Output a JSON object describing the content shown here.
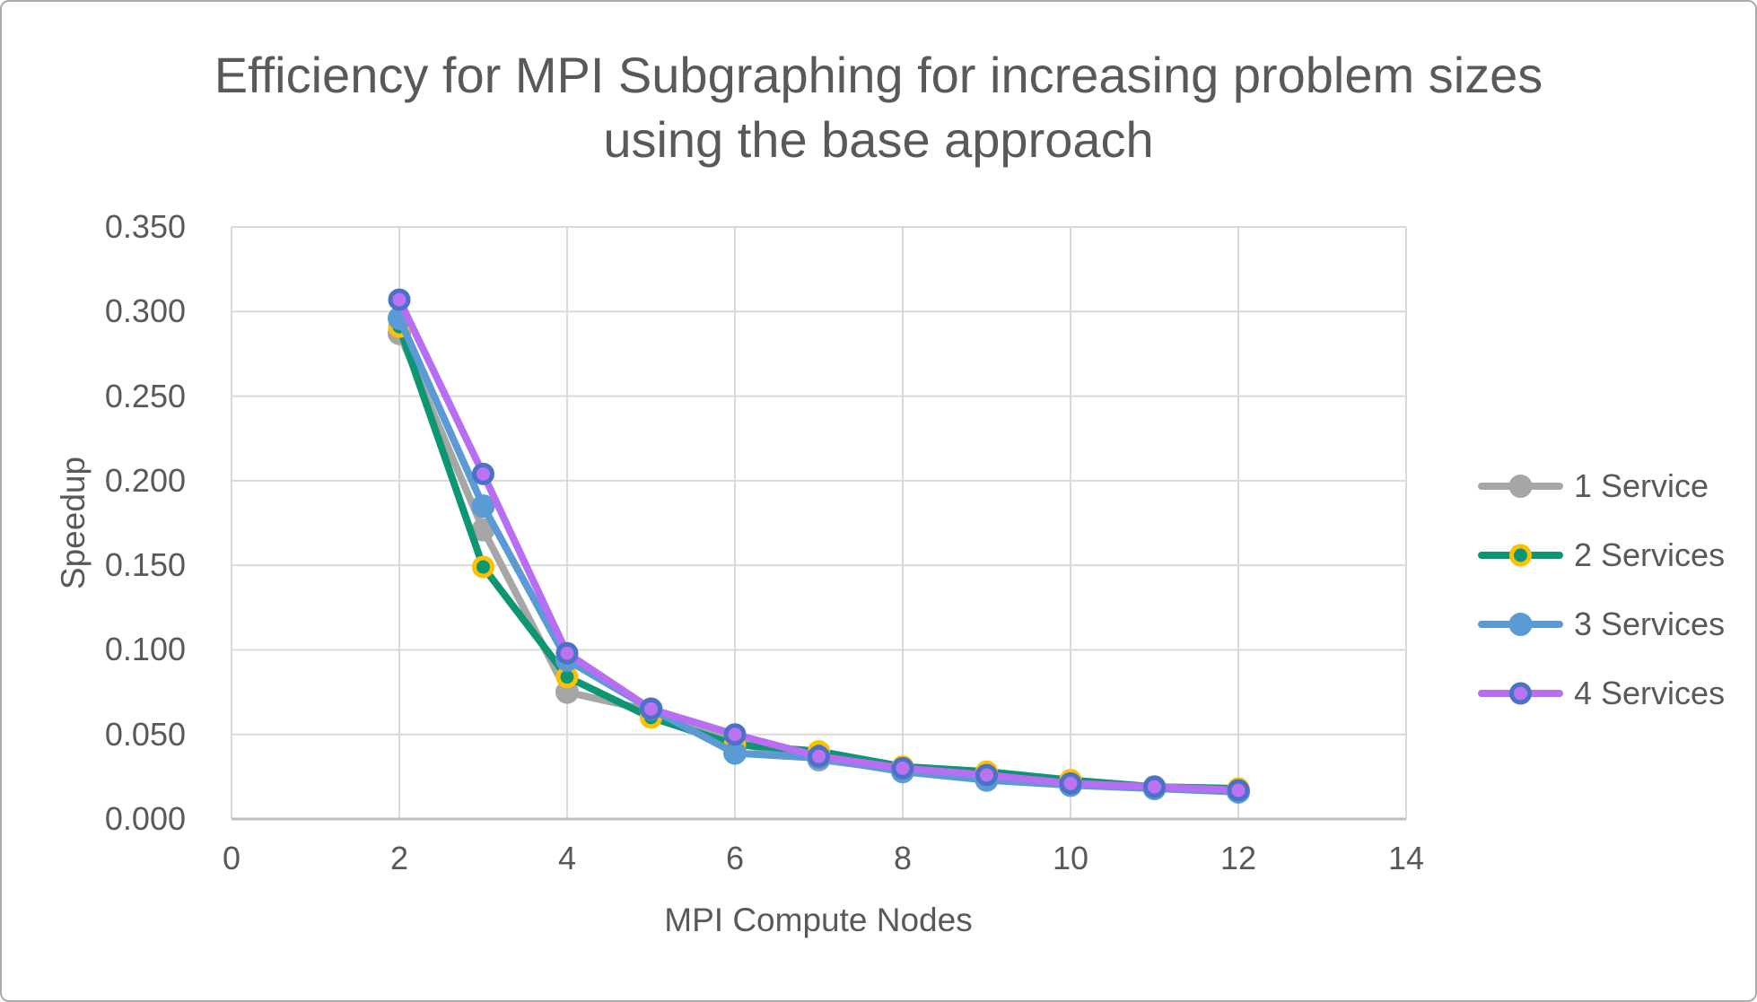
{
  "window": {
    "background": "#ffffff",
    "border_color": "#ababab"
  },
  "chart_data": {
    "type": "line",
    "title_lines": [
      "Efficiency for MPI Subgraphing for increasing problem sizes",
      "using the base approach"
    ],
    "xlabel": "MPI Compute Nodes",
    "ylabel": "Speedup",
    "xlim": [
      0,
      14
    ],
    "ylim": [
      0.0,
      0.35
    ],
    "x_ticks": [
      0,
      2,
      4,
      6,
      8,
      10,
      12,
      14
    ],
    "y_ticks": [
      "0.000",
      "0.050",
      "0.100",
      "0.150",
      "0.200",
      "0.250",
      "0.300",
      "0.350"
    ],
    "grid": true,
    "legend_position": "right",
    "text_color": "#595959",
    "gridline_color": "#d9d9d9",
    "axis_line_color": "#bfbfbf",
    "x": [
      2,
      3,
      4,
      5,
      6,
      7,
      8,
      9,
      10,
      11,
      12
    ],
    "series": [
      {
        "name": "1 Service",
        "line_color": "#a6a6a6",
        "marker_fill": "#a6a6a6",
        "marker_border": "#a6a6a6",
        "values": [
          0.287,
          0.171,
          0.075,
          0.064,
          0.045,
          0.035,
          0.029,
          0.024,
          0.02,
          0.019,
          0.017
        ]
      },
      {
        "name": "2 Services",
        "line_color": "#0d9673",
        "marker_fill": "#0d9673",
        "marker_border": "#ffc000",
        "values": [
          0.291,
          0.149,
          0.084,
          0.06,
          0.044,
          0.04,
          0.031,
          0.028,
          0.023,
          0.019,
          0.018
        ]
      },
      {
        "name": "3 Services",
        "line_color": "#5b9bd5",
        "marker_fill": "#5b9bd5",
        "marker_border": "#5b9bd5",
        "values": [
          0.296,
          0.185,
          0.094,
          0.065,
          0.039,
          0.036,
          0.028,
          0.023,
          0.02,
          0.018,
          0.016
        ]
      },
      {
        "name": "4 Services",
        "line_color": "#b76ef2",
        "marker_fill": "#bb73f2",
        "marker_border": "#4a72c9",
        "values": [
          0.307,
          0.204,
          0.098,
          0.065,
          0.05,
          0.037,
          0.03,
          0.026,
          0.021,
          0.019,
          0.017
        ]
      }
    ]
  }
}
